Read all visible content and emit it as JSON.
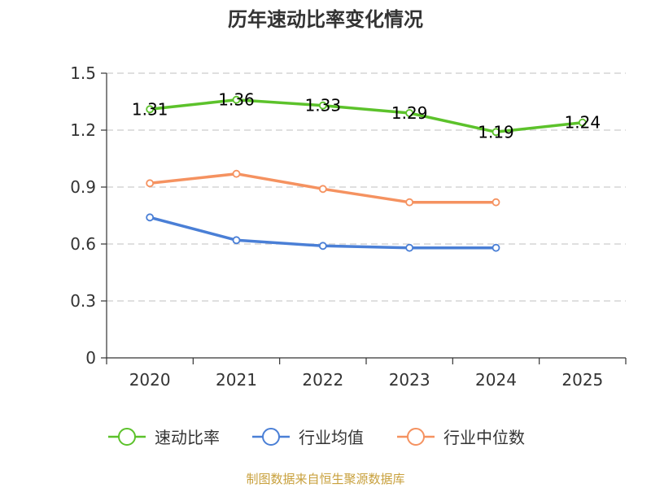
{
  "chart_data": {
    "type": "line",
    "title": "历年速动比率变化情况",
    "categories": [
      "2020",
      "2021",
      "2022",
      "2023",
      "2024",
      "2025"
    ],
    "ylim": [
      0,
      1.5
    ],
    "yticks": [
      "0",
      "0.3",
      "0.6",
      "0.9",
      "1.2",
      "1.5"
    ],
    "grid": true,
    "legend_position": "bottom",
    "series": [
      {
        "name": "速动比率",
        "color": "#5cc22b",
        "values": [
          1.31,
          1.36,
          1.33,
          1.29,
          1.19,
          1.24
        ],
        "labels": [
          "1.31",
          "1.36",
          "1.33",
          "1.29",
          "1.19",
          "1.24"
        ]
      },
      {
        "name": "行业均值",
        "color": "#4a7fd6",
        "values": [
          0.74,
          0.62,
          0.59,
          0.58,
          0.58,
          null
        ]
      },
      {
        "name": "行业中位数",
        "color": "#f59260",
        "values": [
          0.92,
          0.97,
          0.89,
          0.82,
          0.82,
          null
        ]
      }
    ]
  },
  "source": "制图数据来自恒生聚源数据库"
}
